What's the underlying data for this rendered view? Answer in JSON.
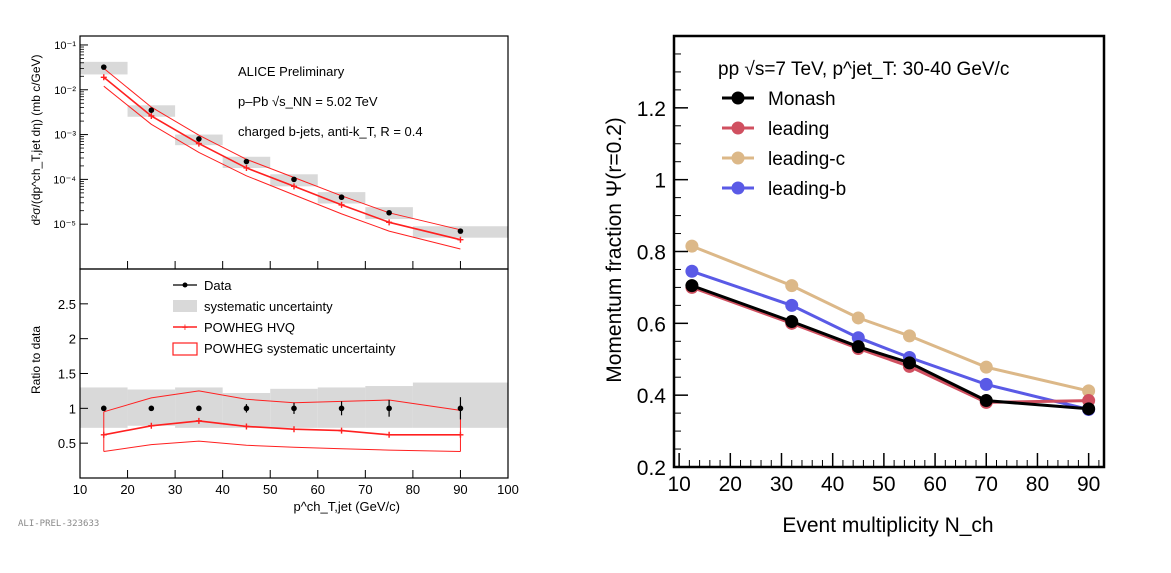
{
  "colors": {
    "data": "#000000",
    "band_gray": "#d9d9d9",
    "powheg_red": "#ff2020",
    "monash": "#000000",
    "leading": "#d05060",
    "leading_c": "#dcb888",
    "leading_b": "#5a5ae6"
  },
  "footer_id": "ALI-PREL-323633",
  "chart_data": [
    {
      "type": "line",
      "panel": "left-top",
      "log_y": true,
      "xlim": [
        10,
        100
      ],
      "ylim_log10": [
        -6,
        -0.8
      ],
      "ylabel": "d²σ/(dp^ch_T,jet dη) (mb c/GeV)",
      "y_ticks": [
        "10⁻¹",
        "10⁻²",
        "10⁻³",
        "10⁻⁴",
        "10⁻⁵"
      ],
      "y_tick_values": [
        0.1,
        0.01,
        0.001,
        0.0001,
        1e-05
      ],
      "annotation_lines": [
        "ALICE Preliminary",
        "p–Pb  √s_NN = 5.02 TeV",
        "charged b-jets, anti-k_T, R = 0.4"
      ],
      "bins": [
        [
          10,
          20
        ],
        [
          20,
          30
        ],
        [
          30,
          40
        ],
        [
          40,
          50
        ],
        [
          50,
          60
        ],
        [
          60,
          70
        ],
        [
          70,
          80
        ],
        [
          80,
          100
        ]
      ],
      "series": [
        {
          "name": "Data",
          "x": [
            15,
            25,
            35,
            45,
            55,
            65,
            75,
            90
          ],
          "y": [
            0.032,
            0.0035,
            0.0008,
            0.00025,
            0.0001,
            4e-05,
            1.8e-05,
            7e-06
          ],
          "sys_lo": [
            0.022,
            0.0025,
            0.00058,
            0.00018,
            7e-05,
            2.9e-05,
            1.3e-05,
            5e-06
          ],
          "sys_hi": [
            0.042,
            0.0045,
            0.001,
            0.00032,
            0.00013,
            5.2e-05,
            2.4e-05,
            9e-06
          ]
        },
        {
          "name": "POWHEG HVQ",
          "x": [
            15,
            25,
            35,
            45,
            55,
            65,
            75,
            90
          ],
          "y": [
            0.019,
            0.0026,
            0.00063,
            0.00018,
            7e-05,
            2.7e-05,
            1.1e-05,
            4.5e-06
          ],
          "band_lo": [
            0.012,
            0.0017,
            0.0004,
            0.00012,
            4.5e-05,
            1.7e-05,
            7e-06,
            2.8e-06
          ],
          "band_hi": [
            0.03,
            0.0041,
            0.00097,
            0.00028,
            0.00011,
            4.3e-05,
            1.8e-05,
            7.5e-06
          ]
        }
      ]
    },
    {
      "type": "line",
      "panel": "left-bottom",
      "xlim": [
        10,
        100
      ],
      "ylim": [
        0,
        3
      ],
      "xlabel": "p^ch_T,jet (GeV/c)",
      "ylabel": "Ratio to data",
      "x_ticks": [
        "10",
        "20",
        "30",
        "40",
        "50",
        "60",
        "70",
        "80",
        "90",
        "100"
      ],
      "y_ticks": [
        "0.5",
        "1",
        "1.5",
        "2",
        "2.5"
      ],
      "legend": [
        "Data",
        "systematic uncertainty",
        "POWHEG HVQ",
        "POWHEG systematic uncertainty"
      ],
      "bins": [
        [
          10,
          20
        ],
        [
          20,
          30
        ],
        [
          30,
          40
        ],
        [
          40,
          50
        ],
        [
          50,
          60
        ],
        [
          60,
          70
        ],
        [
          70,
          80
        ],
        [
          80,
          100
        ]
      ],
      "series": [
        {
          "name": "Data",
          "x": [
            15,
            25,
            35,
            45,
            55,
            65,
            75,
            90
          ],
          "y": [
            1,
            1,
            1,
            1,
            1,
            1,
            1,
            1
          ],
          "stat_err": [
            0.02,
            0.03,
            0.03,
            0.06,
            0.08,
            0.1,
            0.12,
            0.16
          ],
          "sys_lo": [
            0.72,
            0.75,
            0.72,
            0.72,
            0.72,
            0.72,
            0.72,
            0.72
          ],
          "sys_hi": [
            1.3,
            1.27,
            1.3,
            1.22,
            1.28,
            1.3,
            1.32,
            1.37
          ]
        },
        {
          "name": "POWHEG HVQ",
          "x": [
            15,
            25,
            35,
            45,
            55,
            65,
            75,
            90
          ],
          "y": [
            0.62,
            0.75,
            0.82,
            0.74,
            0.7,
            0.68,
            0.62,
            0.62
          ],
          "band_lo": [
            0.38,
            0.48,
            0.53,
            0.47,
            0.44,
            0.42,
            0.4,
            0.38
          ],
          "band_hi": [
            0.95,
            1.15,
            1.25,
            1.13,
            1.08,
            1.1,
            1.12,
            0.97
          ]
        }
      ]
    },
    {
      "type": "line",
      "panel": "right",
      "title": "pp √s=7 TeV, p^jet_T: 30-40 GeV/c",
      "xlabel": "Event multiplicity N_ch",
      "ylabel": "Momentum fraction Ψ(r=0.2)",
      "xlim": [
        9,
        93
      ],
      "ylim": [
        0.2,
        1.4
      ],
      "x_ticks": [
        "10",
        "20",
        "30",
        "40",
        "50",
        "60",
        "70",
        "80",
        "90"
      ],
      "y_ticks": [
        "0.2",
        "0.4",
        "0.6",
        "0.8",
        "1",
        "1.2"
      ],
      "series": [
        {
          "name": "Monash",
          "x": [
            12.5,
            32,
            45,
            55,
            70,
            90
          ],
          "y": [
            0.705,
            0.605,
            0.535,
            0.49,
            0.385,
            0.362
          ]
        },
        {
          "name": "leading",
          "x": [
            12.5,
            32,
            45,
            55,
            70,
            90
          ],
          "y": [
            0.7,
            0.6,
            0.53,
            0.48,
            0.38,
            0.385
          ]
        },
        {
          "name": "leading-c",
          "x": [
            12.5,
            32,
            45,
            55,
            70,
            90
          ],
          "y": [
            0.815,
            0.705,
            0.615,
            0.565,
            0.478,
            0.412
          ]
        },
        {
          "name": "leading-b",
          "x": [
            12.5,
            32,
            45,
            55,
            70,
            90
          ],
          "y": [
            0.745,
            0.65,
            0.56,
            0.505,
            0.43,
            0.36
          ]
        }
      ]
    }
  ]
}
